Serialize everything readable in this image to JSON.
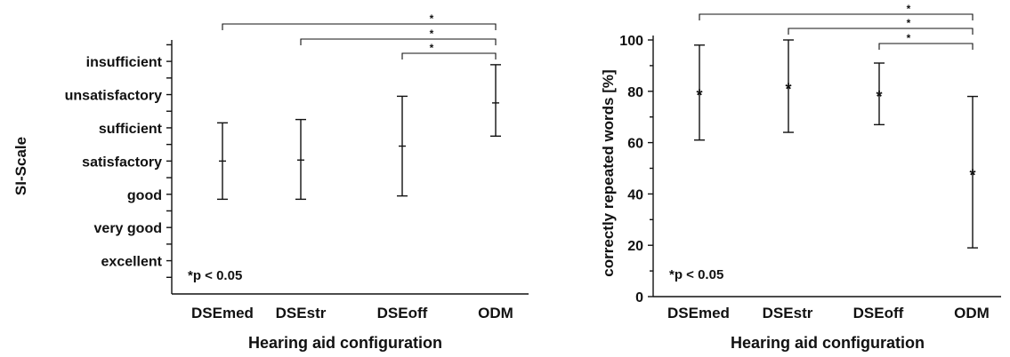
{
  "chart_data": [
    {
      "type": "errorbar",
      "ylabel": "SI-Scale",
      "xlabel": "Hearing aid configuration",
      "categories": [
        "DSEmed",
        "DSEstr",
        "DSEoff",
        "ODM"
      ],
      "y_tick_labels": [
        "excellent",
        "very good",
        "good",
        "satisfactory",
        "sufficient",
        "unsatisfactory",
        "insufficient"
      ],
      "y_tick_values": [
        1,
        2,
        3,
        4,
        5,
        6,
        7
      ],
      "ylim": [
        0,
        8.5
      ],
      "series": [
        {
          "center": [
            4.0,
            4.03,
            4.45,
            5.75
          ],
          "lower": [
            2.85,
            2.85,
            2.95,
            4.75
          ],
          "upper": [
            5.15,
            5.25,
            5.95,
            6.9
          ]
        }
      ],
      "significance": [
        {
          "from": "DSEmed",
          "to": "ODM",
          "label": "*"
        },
        {
          "from": "DSEstr",
          "to": "ODM",
          "label": "*"
        },
        {
          "from": "DSEoff",
          "to": "ODM",
          "label": "*"
        }
      ],
      "annotation": "*p < 0.05"
    },
    {
      "type": "errorbar",
      "ylabel": "correctly repeated words [%]",
      "xlabel": "Hearing aid configuration",
      "categories": [
        "DSEmed",
        "DSEstr",
        "DSEoff",
        "ODM"
      ],
      "y_ticks": [
        0,
        20,
        40,
        60,
        80,
        100
      ],
      "ylim": [
        0,
        100
      ],
      "series": [
        {
          "center": [
            79,
            81.5,
            78.5,
            48
          ],
          "lower": [
            61,
            64,
            67,
            19
          ],
          "upper": [
            98,
            100,
            91,
            78
          ]
        }
      ],
      "significance": [
        {
          "from": "DSEmed",
          "to": "ODM",
          "label": "*"
        },
        {
          "from": "DSEstr",
          "to": "ODM",
          "label": "*"
        },
        {
          "from": "DSEoff",
          "to": "ODM",
          "label": "*"
        }
      ],
      "annotation": "*p < 0.05"
    }
  ]
}
